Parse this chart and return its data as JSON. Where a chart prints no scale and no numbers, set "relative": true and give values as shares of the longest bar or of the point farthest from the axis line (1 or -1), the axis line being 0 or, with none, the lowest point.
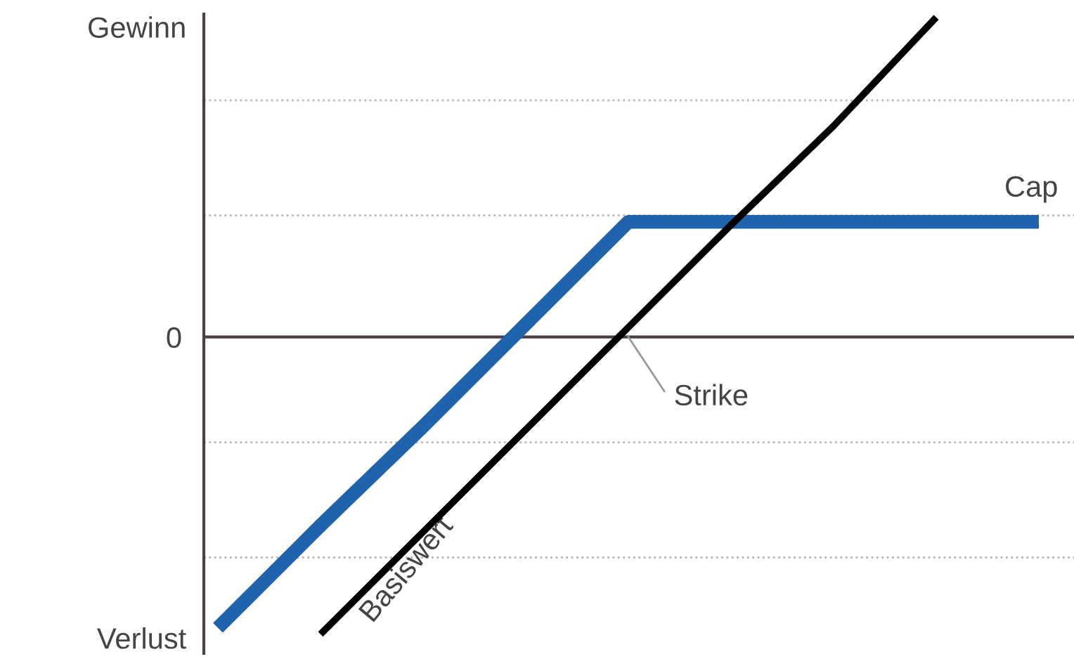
{
  "chart_data": {
    "type": "line",
    "relative": true,
    "categories": [
      null,
      null,
      null,
      null,
      null,
      null,
      null,
      null,
      null
    ],
    "series": [
      {
        "color": "#1f63ad",
        "values": [
          -0.91,
          -0.59,
          -0.28,
          0.04,
          0.36,
          0.36,
          0.36,
          0.36,
          0.36
        ]
      },
      {
        "name": "Basiswert",
        "color": "#000000",
        "values": [
          null,
          -0.93,
          -0.61,
          -0.29,
          0.03,
          0.35,
          0.66,
          1.0,
          null
        ]
      }
    ],
    "ref_lines": [
      {
        "axis": "y",
        "value": 0.74,
        "color": "#b8b8b8",
        "line_style": "dotted"
      },
      {
        "axis": "y",
        "value": 0.38,
        "color": "#b8b8b8",
        "line_style": "dotted"
      },
      {
        "axis": "y",
        "value": -0.33,
        "color": "#b8b8b8",
        "line_style": "dotted"
      },
      {
        "axis": "y",
        "value": -0.69,
        "color": "#b8b8b8",
        "line_style": "dotted"
      }
    ],
    "annotations": [
      "Gewinn",
      "0",
      "Verlust",
      "Strike",
      "Cap"
    ],
    "legend": false,
    "marker": "none",
    "line_style": "solid"
  }
}
